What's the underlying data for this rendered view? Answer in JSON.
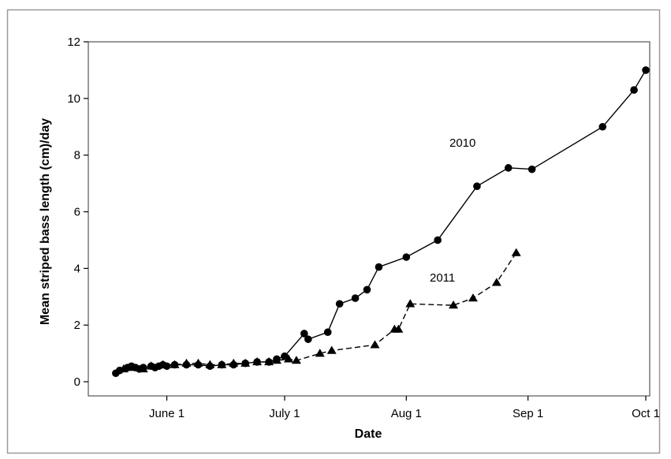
{
  "chart_data": {
    "type": "line",
    "title": "",
    "xlabel": "Date",
    "ylabel": "Mean striped bass length (cm)/day",
    "x_ticks": [
      "June 1",
      "July 1",
      "Aug 1",
      "Sep 1",
      "Oct 1"
    ],
    "x_tick_dates": [
      "2010-06-01",
      "2010-07-01",
      "2010-08-01",
      "2010-09-01",
      "2010-10-01"
    ],
    "xlim": [
      "2010-05-12",
      "2010-10-02"
    ],
    "ylim": [
      -0.5,
      12
    ],
    "y_ticks": [
      "0",
      "2",
      "4",
      "6",
      "8",
      "10",
      "12"
    ],
    "y_tick_values": [
      0,
      2,
      4,
      6,
      8,
      10,
      12
    ],
    "grid": false,
    "legend": "none",
    "series": [
      {
        "name": "2010",
        "marker": "circle",
        "line_style": "solid",
        "color": "#000000",
        "x": [
          "2010-05-19",
          "2010-05-20",
          "2010-05-22",
          "2010-05-23",
          "2010-05-24",
          "2010-05-25",
          "2010-05-26",
          "2010-05-28",
          "2010-05-29",
          "2010-05-30",
          "2010-05-31",
          "2010-06-01",
          "2010-06-03",
          "2010-06-06",
          "2010-06-09",
          "2010-06-12",
          "2010-06-15",
          "2010-06-18",
          "2010-06-21",
          "2010-06-24",
          "2010-06-27",
          "2010-06-29",
          "2010-07-01",
          "2010-07-06",
          "2010-07-07",
          "2010-07-12",
          "2010-07-15",
          "2010-07-19",
          "2010-07-22",
          "2010-07-25",
          "2010-08-01",
          "2010-08-09",
          "2010-08-19",
          "2010-08-27",
          "2010-09-02",
          "2010-09-20",
          "2010-09-28",
          "2010-10-01"
        ],
        "y": [
          0.3,
          0.4,
          0.5,
          0.55,
          0.5,
          0.45,
          0.5,
          0.55,
          0.5,
          0.55,
          0.6,
          0.55,
          0.6,
          0.6,
          0.6,
          0.55,
          0.6,
          0.6,
          0.65,
          0.7,
          0.7,
          0.8,
          0.9,
          1.7,
          1.5,
          1.75,
          2.75,
          2.95,
          3.25,
          4.05,
          4.4,
          5.0,
          6.9,
          7.55,
          7.5,
          9.0,
          10.3,
          11.0
        ]
      },
      {
        "name": "2011",
        "marker": "triangle",
        "line_style": "dashed",
        "color": "#000000",
        "x": [
          "2010-05-21",
          "2010-05-23",
          "2010-05-26",
          "2010-05-28",
          "2010-05-31",
          "2010-06-03",
          "2010-06-06",
          "2010-06-09",
          "2010-06-12",
          "2010-06-15",
          "2010-06-18",
          "2010-06-21",
          "2010-06-24",
          "2010-06-27",
          "2010-06-29",
          "2010-07-02",
          "2010-07-04",
          "2010-07-10",
          "2010-07-13",
          "2010-07-24",
          "2010-07-29",
          "2010-07-30",
          "2010-08-02",
          "2010-08-13",
          "2010-08-18",
          "2010-08-24",
          "2010-08-29"
        ],
        "y": [
          0.45,
          0.5,
          0.45,
          0.55,
          0.6,
          0.6,
          0.65,
          0.65,
          0.6,
          0.6,
          0.65,
          0.65,
          0.7,
          0.7,
          0.75,
          0.8,
          0.75,
          1.0,
          1.1,
          1.3,
          1.85,
          1.85,
          2.75,
          2.7,
          2.95,
          3.5,
          4.55
        ]
      }
    ],
    "annotations": [
      "2010",
      "2011"
    ]
  }
}
